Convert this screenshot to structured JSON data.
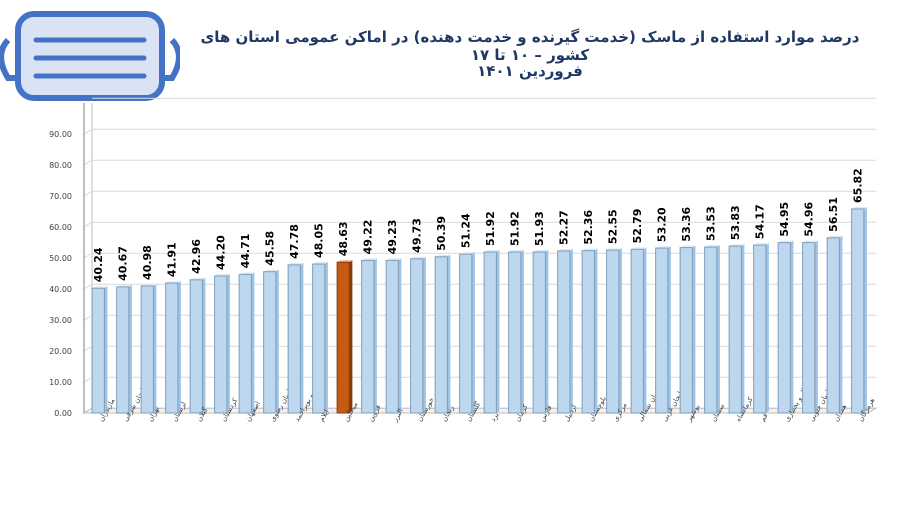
{
  "chart_data": {
    "type": "bar",
    "title": "درصد موارد استفاده از ماسک (خدمت گیرنده و خدمت دهنده) در اماکن عمومی استان های کشور – ۱۰ تا ۱۷",
    "subtitle": "فروردین ۱۴۰۱",
    "categories": [
      "مازندران",
      "آذربایجان شرقی",
      "تهران",
      "لرستان",
      "گیلان",
      "کردستان",
      "اصفهان",
      "خراسان رضوی",
      "کهگیلویه و بویراحمد",
      "ایلام",
      "میانگین",
      "قزوین",
      "البرز",
      "خوزستان",
      "زنجان",
      "گلستان",
      "یزد",
      "کرمان",
      "فارس",
      "اردبیل",
      "سیستان و بلوچستان",
      "مرکزی",
      "خراسان شمالی",
      "آذربایجان غربی",
      "بوشهر",
      "سمنان",
      "کرمانشاه",
      "قم",
      "چهارمحال و بختیاری",
      "خراسان جنوبی",
      "همدان",
      "هرمزگان"
    ],
    "values": [
      40.24,
      40.67,
      40.98,
      41.91,
      42.96,
      44.2,
      44.71,
      45.58,
      47.78,
      48.05,
      48.63,
      49.22,
      49.23,
      49.73,
      50.39,
      51.24,
      51.92,
      51.92,
      51.93,
      52.27,
      52.36,
      52.55,
      52.79,
      53.2,
      53.36,
      53.53,
      53.83,
      54.17,
      54.95,
      54.96,
      56.51,
      65.82
    ],
    "value_labels": [
      "40.24",
      "40.67",
      "40.98",
      "41.91",
      "42.96",
      "44.20",
      "44.71",
      "45.58",
      "47.78",
      "48.05",
      "48.63",
      "49.22",
      "49.23",
      "49.73",
      "50.39",
      "51.24",
      "51.92",
      "51.92",
      "51.93",
      "52.27",
      "52.36",
      "52.55",
      "52.79",
      "53.20",
      "53.36",
      "53.53",
      "53.83",
      "54.17",
      "54.95",
      "54.96",
      "56.51",
      "65.82"
    ],
    "highlight_category": "میانگین",
    "yticks": [
      "0.00",
      "10.00",
      "20.00",
      "30.00",
      "40.00",
      "50.00",
      "60.00",
      "70.00",
      "80.00",
      "90.00"
    ],
    "ylim": [
      0,
      100
    ],
    "grid": true,
    "legend": "none",
    "colors": {
      "bar": "#bdd7ee",
      "bar_stroke": "#7f9db9",
      "highlight": "#c55a11",
      "highlight_stroke": "#843c0c",
      "title": "#1f3864",
      "grid": "#d9d9d9",
      "mask": "#4472c4",
      "mask_fill": "#dae3f3"
    }
  },
  "decor": {
    "mask_icon": "face-mask-icon"
  }
}
